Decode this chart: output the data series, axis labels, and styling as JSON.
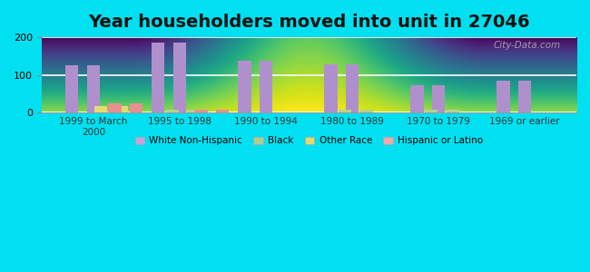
{
  "title": "Year householders moved into unit in 27046",
  "categories": [
    "1999 to March\n2000",
    "1995 to 1998",
    "1990 to 1994",
    "1980 to 1989",
    "1970 to 1979",
    "1969 or earlier"
  ],
  "series": {
    "White Non-Hispanic": [
      125,
      185,
      138,
      128,
      72,
      85
    ],
    "Black": [
      0,
      8,
      0,
      8,
      8,
      0
    ],
    "Other Race": [
      18,
      0,
      0,
      0,
      0,
      0
    ],
    "Hispanic or Latino": [
      25,
      7,
      0,
      0,
      0,
      0
    ]
  },
  "colors": {
    "White Non-Hispanic": "#b090cc",
    "Black": "#b8d090",
    "Other Race": "#e8d870",
    "Hispanic or Latino": "#e89090"
  },
  "legend_colors": {
    "White Non-Hispanic": "#c8a0dc",
    "Black": "#b0cc90",
    "Other Race": "#e8d870",
    "Hispanic or Latino": "#f0a8a8"
  },
  "ylim": [
    0,
    200
  ],
  "yticks": [
    0,
    100,
    200
  ],
  "background_outer": "#00e0f0",
  "title_fontsize": 14,
  "bar_width": 0.15
}
